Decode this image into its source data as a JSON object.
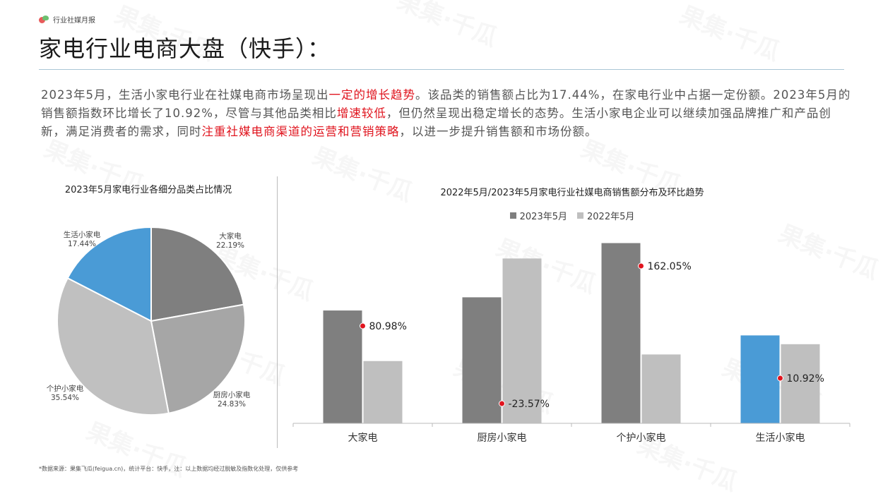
{
  "header": {
    "brand": "行业社媒月报"
  },
  "page_title": "家电行业电商大盘（快手）：",
  "intro": {
    "p1a": "2023年5月，生活小家电行业在社媒电商市场呈现出",
    "p1b": "一定的增长趋势",
    "p1c": "。该品类的销售额占比为17.44%，在家电行业中占据一定份额。2023年5月的销售额指数环比增长了10.92%，尽管与其他品类相比",
    "p1d": "增速较低",
    "p1e": "，但仍然呈现出稳定增长的态势。生活小家电企业可以继续加强品牌推广和产品创新，满足消费者的需求，同时",
    "p1f": "注重社媒电商渠道的运营和营销策略",
    "p1g": "，以进一步提升销售额和市场份额。"
  },
  "watermark": "果集·千瓜",
  "footnote": "*数据来源：果集飞瓜(feigua.cn)，统计平台：快手，注：以上数据均经过脱敏及指数化处理，仅供参考",
  "chart_data": [
    {
      "type": "pie",
      "title": "2023年5月家电行业各细分品类占比情况",
      "slices": [
        {
          "label": "大家电",
          "value": 22.19,
          "display": "22.19%",
          "color": "#7f7f7f"
        },
        {
          "label": "厨房小家电",
          "value": 24.83,
          "display": "24.83%",
          "color": "#a6a6a6"
        },
        {
          "label": "个护小家电",
          "value": 35.54,
          "display": "35.54%",
          "color": "#c0c0c0"
        },
        {
          "label": "生活小家电",
          "value": 17.44,
          "display": "17.44%",
          "color": "#4a9bd6"
        }
      ]
    },
    {
      "type": "bar",
      "title": "2022年5月/2023年5月家电行业社媒电商销售额分布及环比趋势",
      "legend_position": "top",
      "categories": [
        "大家电",
        "厨房小家电",
        "个护小家电",
        "生活小家电"
      ],
      "series": [
        {
          "name": "2023年5月",
          "color": "#7f7f7f",
          "highlight": {
            "index": 3,
            "color": "#4a9bd6"
          },
          "values": [
            154,
            172,
            246,
            120
          ]
        },
        {
          "name": "2022年5月",
          "color": "#bfbfbf",
          "values": [
            85,
            225,
            94,
            108
          ]
        }
      ],
      "growth_labels": [
        "80.98%",
        "-23.57%",
        "162.05%",
        "10.92%"
      ],
      "growth_marker_color": "#e0141e",
      "ylim": [
        0,
        260
      ],
      "grid": false
    }
  ]
}
